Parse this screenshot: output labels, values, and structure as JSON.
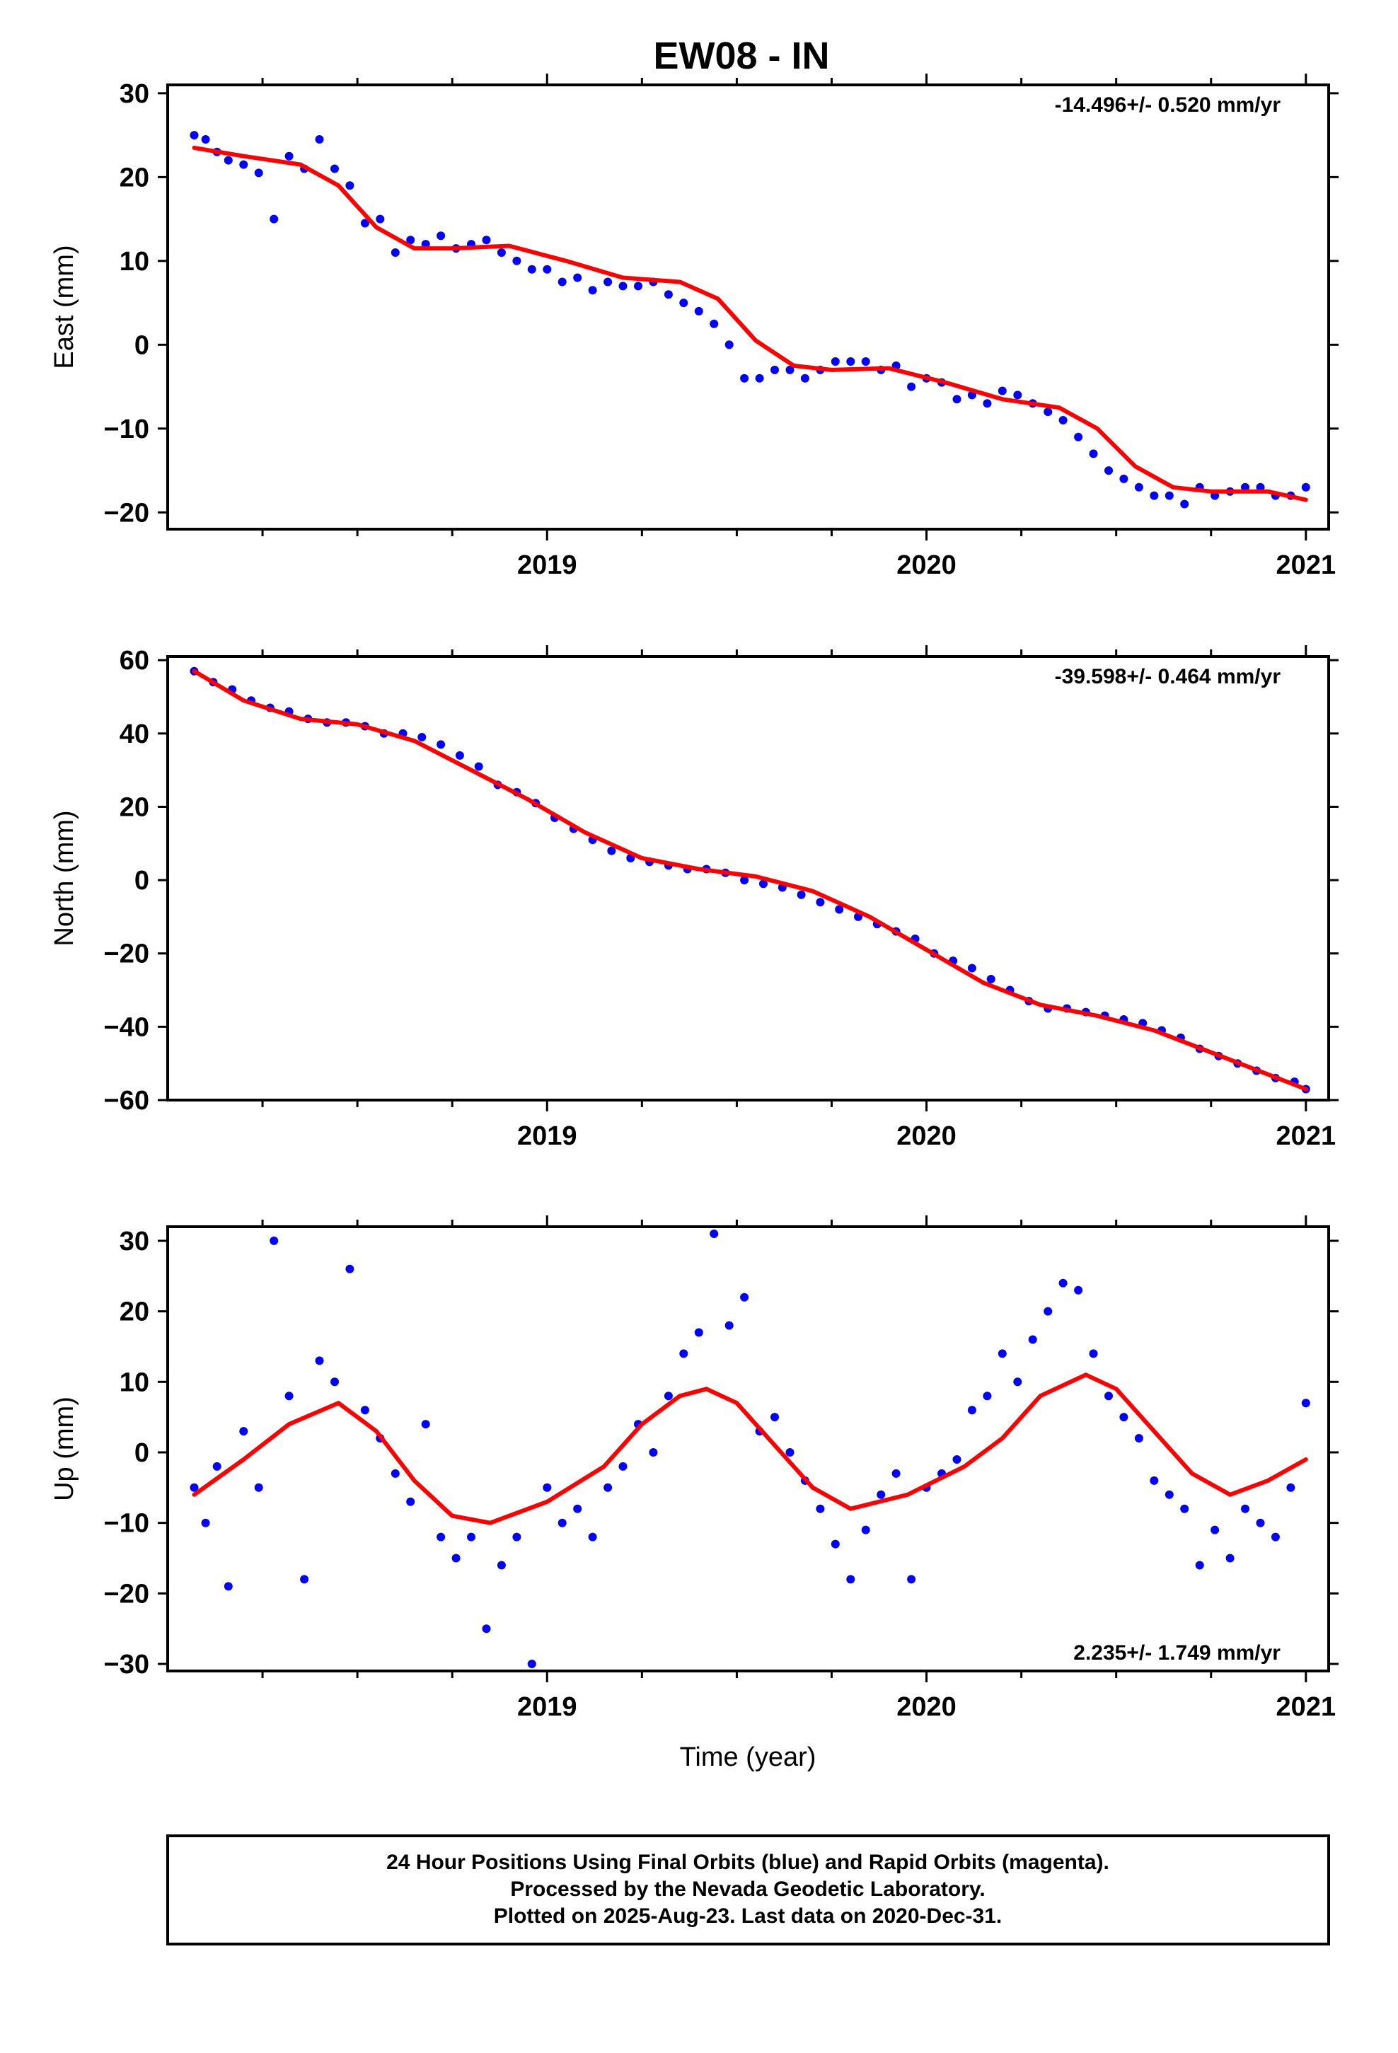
{
  "title": "EW08 - IN",
  "x_axis_label": "Time (year)",
  "footer": [
    "24 Hour Positions Using Final Orbits (blue) and Rapid Orbits (magenta).",
    "Processed by the Nevada Geodetic Laboratory.",
    "Plotted on 2025-Aug-23. Last data on 2020-Dec-31."
  ],
  "colors": {
    "points": "#0000ff",
    "fit": "#ff0000",
    "frame": "#000000"
  },
  "chart_data": [
    {
      "type": "scatter",
      "name": "east",
      "ylabel": "East (mm)",
      "xlim": [
        2018.0,
        2021.06
      ],
      "ylim": [
        -22,
        31
      ],
      "yticks": [
        -20,
        -10,
        0,
        10,
        20,
        30
      ],
      "xticks_major": [
        2019,
        2020,
        2021
      ],
      "xtick_labels": [
        "2019",
        "2020",
        "2021"
      ],
      "rate_text": "-14.496+/- 0.520 mm/yr",
      "rate_position": "top-right",
      "series": [
        {
          "name": "fit",
          "style": "line",
          "x": [
            2018.07,
            2018.2,
            2018.35,
            2018.45,
            2018.55,
            2018.65,
            2018.75,
            2018.9,
            2019.05,
            2019.2,
            2019.35,
            2019.45,
            2019.55,
            2019.65,
            2019.75,
            2019.9,
            2020.05,
            2020.2,
            2020.35,
            2020.45,
            2020.55,
            2020.65,
            2020.75,
            2020.9,
            2021.0
          ],
          "y": [
            23.5,
            22.5,
            21.5,
            19,
            14,
            11.5,
            11.5,
            11.8,
            10,
            8,
            7.5,
            5.5,
            0.5,
            -2.5,
            -3,
            -2.8,
            -4.5,
            -6.5,
            -7.5,
            -10,
            -14.5,
            -17,
            -17.5,
            -17.5,
            -18.5
          ]
        },
        {
          "name": "daily positions",
          "style": "points",
          "x": [
            2018.07,
            2018.1,
            2018.13,
            2018.16,
            2018.2,
            2018.24,
            2018.28,
            2018.32,
            2018.36,
            2018.4,
            2018.44,
            2018.48,
            2018.52,
            2018.56,
            2018.6,
            2018.64,
            2018.68,
            2018.72,
            2018.76,
            2018.8,
            2018.84,
            2018.88,
            2018.92,
            2018.96,
            2019.0,
            2019.04,
            2019.08,
            2019.12,
            2019.16,
            2019.2,
            2019.24,
            2019.28,
            2019.32,
            2019.36,
            2019.4,
            2019.44,
            2019.48,
            2019.52,
            2019.56,
            2019.6,
            2019.64,
            2019.68,
            2019.72,
            2019.76,
            2019.8,
            2019.84,
            2019.88,
            2019.92,
            2019.96,
            2020.0,
            2020.04,
            2020.08,
            2020.12,
            2020.16,
            2020.2,
            2020.24,
            2020.28,
            2020.32,
            2020.36,
            2020.4,
            2020.44,
            2020.48,
            2020.52,
            2020.56,
            2020.6,
            2020.64,
            2020.68,
            2020.72,
            2020.76,
            2020.8,
            2020.84,
            2020.88,
            2020.92,
            2020.96,
            2021.0
          ],
          "y": [
            25,
            24.5,
            23,
            22,
            21.5,
            20.5,
            15,
            22.5,
            21,
            24.5,
            21,
            19,
            14.5,
            15,
            11,
            12.5,
            12,
            13,
            11.5,
            12,
            12.5,
            11,
            10,
            9,
            9,
            7.5,
            8,
            6.5,
            7.5,
            7,
            7,
            7.5,
            6,
            5,
            4,
            2.5,
            0,
            -4,
            -4,
            -3,
            -3,
            -4,
            -3,
            -2,
            -2,
            -2,
            -3,
            -2.5,
            -5,
            -4,
            -4.5,
            -6.5,
            -6,
            -7,
            -5.5,
            -6,
            -7,
            -8,
            -9,
            -11,
            -13,
            -15,
            -16,
            -17,
            -18,
            -18,
            -19,
            -17,
            -18,
            -17.5,
            -17,
            -17,
            -18,
            -18,
            -17
          ]
        }
      ]
    },
    {
      "type": "scatter",
      "name": "north",
      "ylabel": "North (mm)",
      "xlim": [
        2018.0,
        2021.06
      ],
      "ylim": [
        -60,
        61
      ],
      "yticks": [
        -60,
        -40,
        -20,
        0,
        20,
        40,
        60
      ],
      "xticks_major": [
        2019,
        2020,
        2021
      ],
      "xtick_labels": [
        "2019",
        "2020",
        "2021"
      ],
      "rate_text": "-39.598+/- 0.464 mm/yr",
      "rate_position": "top-right",
      "series": [
        {
          "name": "fit",
          "style": "line",
          "x": [
            2018.07,
            2018.2,
            2018.35,
            2018.5,
            2018.65,
            2018.8,
            2018.95,
            2019.1,
            2019.25,
            2019.4,
            2019.55,
            2019.7,
            2019.85,
            2020.0,
            2020.15,
            2020.3,
            2020.45,
            2020.6,
            2020.75,
            2020.9,
            2021.0
          ],
          "y": [
            57,
            49,
            44,
            42.5,
            38,
            30,
            22,
            13,
            6,
            3,
            1,
            -3,
            -10,
            -19,
            -28,
            -34,
            -37,
            -41,
            -47,
            -53,
            -57
          ]
        },
        {
          "name": "daily positions",
          "style": "points",
          "x": [
            2018.07,
            2018.12,
            2018.17,
            2018.22,
            2018.27,
            2018.32,
            2018.37,
            2018.42,
            2018.47,
            2018.52,
            2018.57,
            2018.62,
            2018.67,
            2018.72,
            2018.77,
            2018.82,
            2018.87,
            2018.92,
            2018.97,
            2019.02,
            2019.07,
            2019.12,
            2019.17,
            2019.22,
            2019.27,
            2019.32,
            2019.37,
            2019.42,
            2019.47,
            2019.52,
            2019.57,
            2019.62,
            2019.67,
            2019.72,
            2019.77,
            2019.82,
            2019.87,
            2019.92,
            2019.97,
            2020.02,
            2020.07,
            2020.12,
            2020.17,
            2020.22,
            2020.27,
            2020.32,
            2020.37,
            2020.42,
            2020.47,
            2020.52,
            2020.57,
            2020.62,
            2020.67,
            2020.72,
            2020.77,
            2020.82,
            2020.87,
            2020.92,
            2020.97,
            2021.0
          ],
          "y": [
            57,
            54,
            52,
            49,
            47,
            46,
            44,
            43,
            43,
            42,
            40,
            40,
            39,
            37,
            34,
            31,
            26,
            24,
            21,
            17,
            14,
            11,
            8,
            6,
            5,
            4,
            3,
            3,
            2,
            0,
            -1,
            -2,
            -4,
            -6,
            -8,
            -10,
            -12,
            -14,
            -16,
            -20,
            -22,
            -24,
            -27,
            -30,
            -33,
            -35,
            -35,
            -36,
            -37,
            -38,
            -39,
            -41,
            -43,
            -46,
            -48,
            -50,
            -52,
            -54,
            -55,
            -57
          ]
        }
      ]
    },
    {
      "type": "scatter",
      "name": "up",
      "ylabel": "Up (mm)",
      "xlim": [
        2018.0,
        2021.06
      ],
      "ylim": [
        -31,
        32
      ],
      "yticks": [
        -30,
        -20,
        -10,
        0,
        10,
        20,
        30
      ],
      "xticks_major": [
        2019,
        2020,
        2021
      ],
      "xtick_labels": [
        "2019",
        "2020",
        "2021"
      ],
      "rate_text": "2.235+/- 1.749 mm/yr",
      "rate_position": "bottom-right",
      "series": [
        {
          "name": "fit",
          "style": "line",
          "x": [
            2018.07,
            2018.2,
            2018.32,
            2018.45,
            2018.55,
            2018.65,
            2018.75,
            2018.85,
            2019.0,
            2019.15,
            2019.25,
            2019.35,
            2019.42,
            2019.5,
            2019.6,
            2019.7,
            2019.8,
            2019.95,
            2020.1,
            2020.2,
            2020.3,
            2020.42,
            2020.5,
            2020.6,
            2020.7,
            2020.8,
            2020.9,
            2021.0
          ],
          "y": [
            -6,
            -1,
            4,
            7,
            3,
            -4,
            -9,
            -10,
            -7,
            -2,
            4,
            8,
            9,
            7,
            1,
            -5,
            -8,
            -6,
            -2,
            2,
            8,
            11,
            9,
            3,
            -3,
            -6,
            -4,
            -1
          ]
        },
        {
          "name": "daily positions",
          "style": "points",
          "x": [
            2018.07,
            2018.1,
            2018.13,
            2018.16,
            2018.2,
            2018.24,
            2018.28,
            2018.32,
            2018.36,
            2018.4,
            2018.44,
            2018.48,
            2018.52,
            2018.56,
            2018.6,
            2018.64,
            2018.68,
            2018.72,
            2018.76,
            2018.8,
            2018.84,
            2018.88,
            2018.92,
            2018.96,
            2019.0,
            2019.04,
            2019.08,
            2019.12,
            2019.16,
            2019.2,
            2019.24,
            2019.28,
            2019.32,
            2019.36,
            2019.4,
            2019.44,
            2019.48,
            2019.52,
            2019.56,
            2019.6,
            2019.64,
            2019.68,
            2019.72,
            2019.76,
            2019.8,
            2019.84,
            2019.88,
            2019.92,
            2019.96,
            2020.0,
            2020.04,
            2020.08,
            2020.12,
            2020.16,
            2020.2,
            2020.24,
            2020.28,
            2020.32,
            2020.36,
            2020.4,
            2020.44,
            2020.48,
            2020.52,
            2020.56,
            2020.6,
            2020.64,
            2020.68,
            2020.72,
            2020.76,
            2020.8,
            2020.84,
            2020.88,
            2020.92,
            2020.96,
            2021.0
          ],
          "y": [
            -5,
            -10,
            -2,
            -19,
            3,
            -5,
            30,
            8,
            -18,
            13,
            10,
            26,
            6,
            2,
            -3,
            -7,
            4,
            -12,
            -15,
            -12,
            -25,
            -16,
            -12,
            -30,
            -5,
            -10,
            -8,
            -12,
            -5,
            -2,
            4,
            0,
            8,
            14,
            17,
            31,
            18,
            22,
            3,
            5,
            0,
            -4,
            -8,
            -13,
            -18,
            -11,
            -6,
            -3,
            -18,
            -5,
            -3,
            -1,
            6,
            8,
            14,
            10,
            16,
            20,
            24,
            23,
            14,
            8,
            5,
            2,
            -4,
            -6,
            -8,
            -16,
            -11,
            -15,
            -8,
            -10,
            -12,
            -5,
            7
          ]
        }
      ]
    }
  ]
}
